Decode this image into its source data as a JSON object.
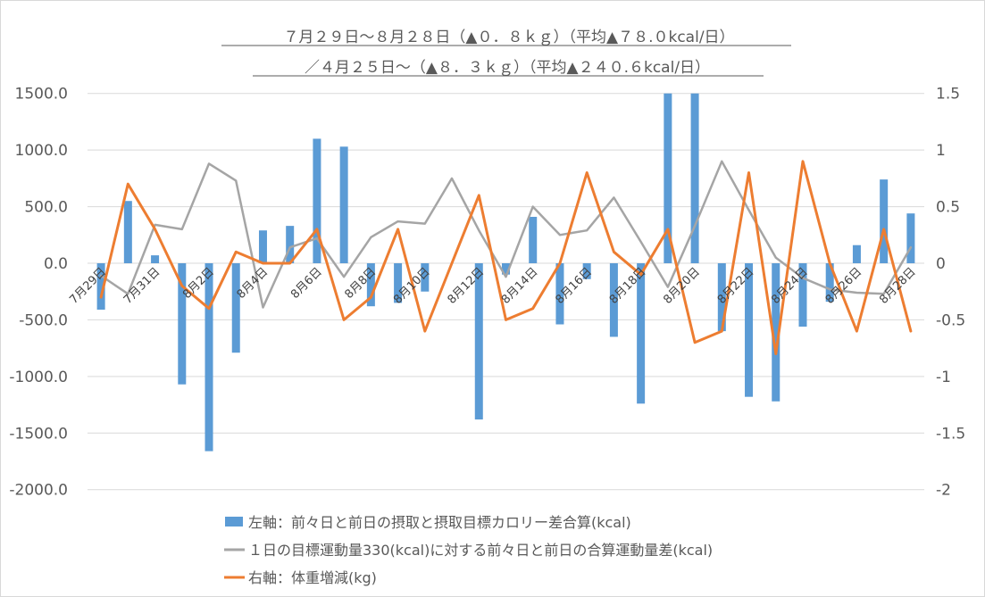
{
  "chart_data": {
    "type": "bar",
    "title": "７月２９日～８月２８日（▲０．８ｋｇ）（平均▲７８.０kcal/日）",
    "subtitle": "／４月２５日～（▲８．３ｋｇ）（平均▲２４０.６kcal/日）",
    "categories": [
      "7月29日",
      "7月30日",
      "7月31日",
      "8月1日",
      "8月2日",
      "8月3日",
      "8月4日",
      "8月5日",
      "8月6日",
      "8月7日",
      "8月8日",
      "8月9日",
      "8月10日",
      "8月11日",
      "8月12日",
      "8月13日",
      "8月14日",
      "8月15日",
      "8月16日",
      "8月17日",
      "8月18日",
      "8月19日",
      "8月20日",
      "8月21日",
      "8月22日",
      "8月23日",
      "8月24日",
      "8月25日",
      "8月26日",
      "8月27日",
      "8月28日"
    ],
    "x_tick_labels": [
      "7月29日",
      "7月31日",
      "8月2日",
      "8月4日",
      "8月6日",
      "8月8日",
      "8月10日",
      "8月12日",
      "8月14日",
      "8月16日",
      "8月18日",
      "8月20日",
      "8月22日",
      "8月24日",
      "8月26日",
      "8月28日"
    ],
    "y_left": {
      "min": -2000,
      "max": 1500,
      "step": 500,
      "tick_labels": [
        "1500.0",
        "1000.0",
        "500.0",
        "0.0",
        "-500.0",
        "-1000.0",
        "-1500.0",
        "-2000.0"
      ]
    },
    "y_right": {
      "min": -2,
      "max": 1.5,
      "step": 0.5,
      "tick_labels": [
        "1.5",
        "1",
        "0.5",
        "0",
        "-0.5",
        "-1",
        "-1.5",
        "-2"
      ]
    },
    "grid": true,
    "legend_position": "bottom",
    "series": [
      {
        "name": "左軸：前々日と前日の摂取と摂取目標カロリー差合算(kcal)",
        "kind": "bar",
        "axis": "left",
        "color": "#5b9bd5",
        "values": [
          -410,
          550,
          70,
          -1070,
          -1660,
          -790,
          290,
          330,
          1100,
          1030,
          -380,
          -350,
          -250,
          0,
          -1380,
          -100,
          410,
          -540,
          -140,
          -650,
          -1240,
          1500,
          1500,
          -600,
          -1180,
          -1220,
          -560,
          -340,
          160,
          740,
          440
        ]
      },
      {
        "name": "１日の目標運動量330(kcal)に対する前々日と前日の合算運動量差(kcal)",
        "kind": "line",
        "axis": "left",
        "color": "#a5a5a5",
        "values": [
          -110,
          -270,
          340,
          300,
          880,
          730,
          -390,
          140,
          220,
          -120,
          230,
          370,
          350,
          750,
          290,
          -120,
          500,
          250,
          290,
          580,
          190,
          -210,
          330,
          900,
          470,
          50,
          -130,
          -230,
          -260,
          -270,
          140
        ]
      },
      {
        "name": "右軸：体重増減(kg)",
        "kind": "line",
        "axis": "right",
        "color": "#ed7d31",
        "values": [
          -0.3,
          0.7,
          0.3,
          -0.2,
          -0.4,
          0.1,
          0.0,
          0.0,
          0.3,
          -0.5,
          -0.3,
          0.3,
          -0.6,
          0.0,
          0.6,
          -0.5,
          -0.4,
          0.0,
          0.8,
          0.1,
          -0.1,
          0.3,
          -0.7,
          -0.6,
          0.8,
          -0.8,
          0.9,
          0.0,
          -0.6,
          0.3,
          -0.6
        ]
      }
    ]
  }
}
